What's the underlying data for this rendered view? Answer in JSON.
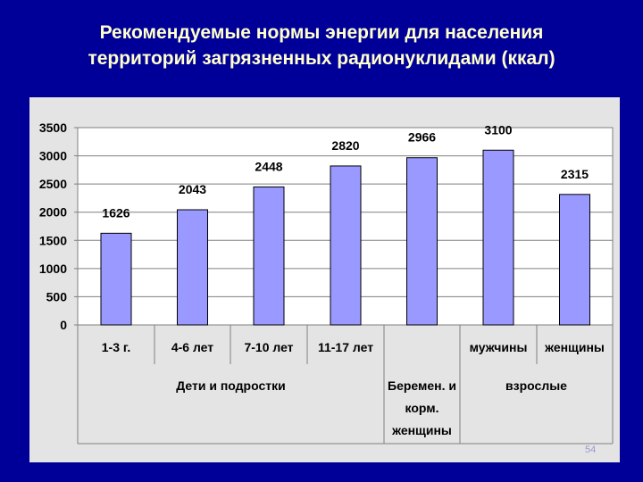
{
  "slide": {
    "title_line1": "Рекомендуемые нормы энергии для населения",
    "title_line2": "территорий загрязненных радионуклидами (ккал)",
    "slide_number": "54"
  },
  "colors": {
    "background": "#000099",
    "title": "#ffffcc",
    "bar": "#9999ff",
    "panel": "#e4e4e4"
  },
  "chart_data": {
    "type": "bar",
    "categories": [
      "1-3 г.",
      "4-6 лет",
      "7-10 лет",
      "11-17 лет",
      "",
      "мужчины",
      "женщины"
    ],
    "values": [
      1626,
      2043,
      2448,
      2820,
      2966,
      3100,
      2315
    ],
    "ylim": [
      0,
      3500
    ],
    "yticks": [
      0,
      500,
      1000,
      1500,
      2000,
      2500,
      3000,
      3500
    ],
    "grid": true,
    "legend": "none",
    "group_labels": [
      {
        "text": "Дети и подростки",
        "span": [
          0,
          3
        ]
      },
      {
        "text": "Беремен. и корм. женщины",
        "lines": [
          "Беремен. и",
          "корм.",
          "женщины"
        ],
        "span": [
          4,
          4
        ]
      },
      {
        "text": "взрослые",
        "span": [
          5,
          6
        ]
      }
    ]
  }
}
